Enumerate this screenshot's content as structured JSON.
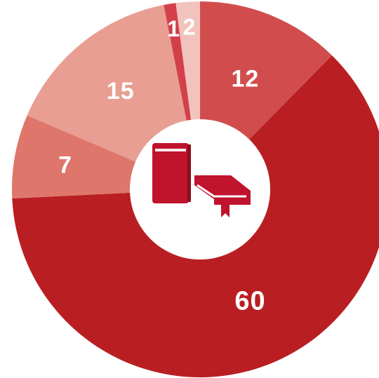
{
  "chart_data": {
    "type": "pie",
    "variant": "donut",
    "title": "",
    "center_icon": "books-icon",
    "start_angle_deg": 0,
    "direction": "clockwise",
    "slices": [
      {
        "label": "12",
        "value": 12,
        "color": "#d14d4d"
      },
      {
        "label": "60",
        "value": 60,
        "color": "#b91f22"
      },
      {
        "label": "7",
        "value": 7,
        "color": "#de766b"
      },
      {
        "label": "15",
        "value": 15,
        "color": "#e89e92"
      },
      {
        "label": "1",
        "value": 1,
        "color": "#d2404a"
      },
      {
        "label": "2",
        "value": 2,
        "color": "#f2c3bc"
      }
    ],
    "icon_color": "#c0132d",
    "hole_color": "#ffffff"
  }
}
